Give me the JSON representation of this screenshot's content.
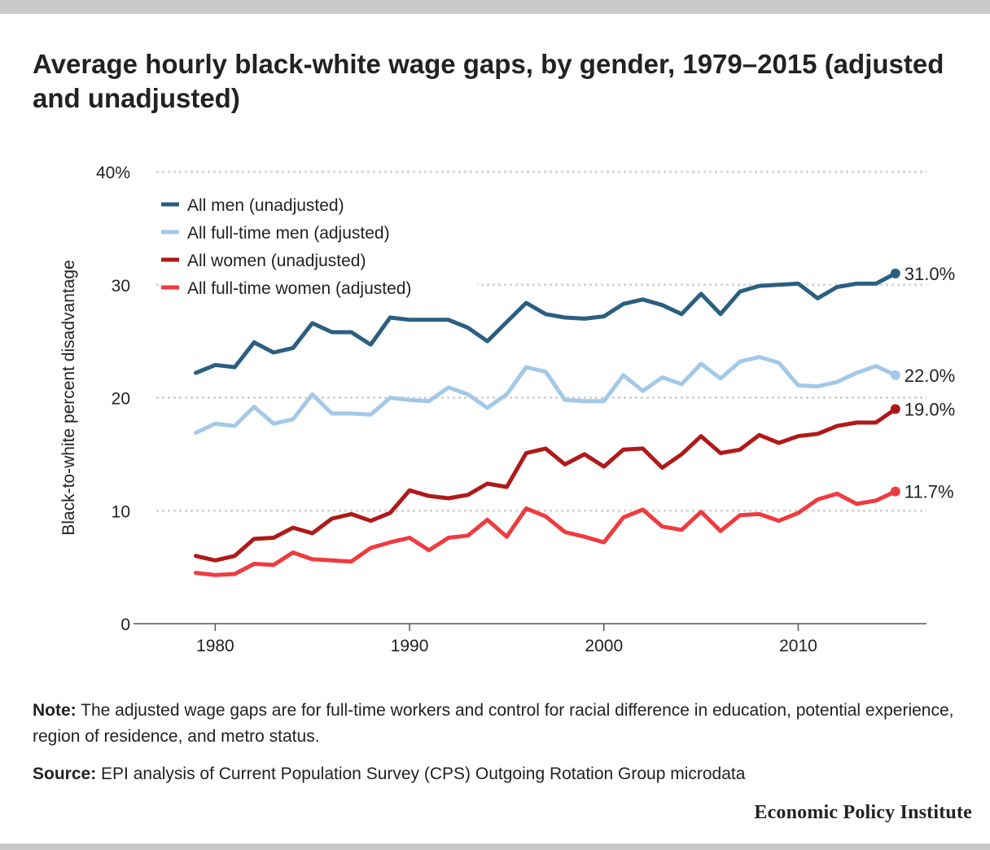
{
  "header": {
    "title": "Average hourly black-white wage gaps, by gender, 1979–2015 (adjusted and unadjusted)"
  },
  "footer": {
    "note_label": "Note:",
    "note_text": " The adjusted wage gaps are for full-time workers and control for racial difference in education, potential experience, region of residence, and metro status.",
    "source_label": "Source:",
    "source_text": " EPI analysis of Current Population Survey (CPS) Outgoing Rotation Group microdata",
    "brand": "Economic Policy Institute"
  },
  "chart_data": {
    "type": "line",
    "title": "Average hourly black-white wage gaps, by gender, 1979–2015 (adjusted and unadjusted)",
    "xlabel": "",
    "ylabel": "Black-to-white percent disadvantage",
    "xlim": [
      1976.8,
      2016.6
    ],
    "ylim": [
      0,
      40
    ],
    "x_ticks": [
      1980,
      1990,
      2000,
      2010
    ],
    "x_tick_labels": [
      "1980",
      "1990",
      "2000",
      "2010"
    ],
    "y_ticks": [
      0,
      10,
      20,
      30,
      40
    ],
    "y_tick_labels": [
      "0",
      "10",
      "20",
      "30",
      "40%"
    ],
    "grid": "horizontal dotted",
    "legend_position": "top-left",
    "x": [
      1979,
      1980,
      1981,
      1982,
      1983,
      1984,
      1985,
      1986,
      1987,
      1988,
      1989,
      1990,
      1991,
      1992,
      1993,
      1994,
      1995,
      1996,
      1997,
      1998,
      1999,
      2000,
      2001,
      2002,
      2003,
      2004,
      2005,
      2006,
      2007,
      2008,
      2009,
      2010,
      2011,
      2012,
      2013,
      2014,
      2015
    ],
    "series": [
      {
        "name": "All men (unadjusted)",
        "color": "#2b5f82",
        "end_label": "31.0%",
        "values": [
          22.2,
          22.9,
          22.7,
          24.9,
          24.0,
          24.4,
          26.6,
          25.8,
          25.8,
          24.7,
          27.1,
          26.9,
          26.9,
          26.9,
          26.2,
          25.0,
          26.7,
          28.4,
          27.4,
          27.1,
          27.0,
          27.2,
          28.3,
          28.7,
          28.2,
          27.4,
          29.2,
          27.4,
          29.4,
          29.9,
          30.0,
          30.1,
          28.8,
          29.8,
          30.1,
          30.1,
          31.0
        ]
      },
      {
        "name": "All full-time men (adjusted)",
        "color": "#a3c8e8",
        "end_label": "22.0%",
        "values": [
          16.9,
          17.7,
          17.5,
          19.2,
          17.7,
          18.1,
          20.3,
          18.6,
          18.6,
          18.5,
          20.0,
          19.8,
          19.7,
          20.9,
          20.3,
          19.1,
          20.3,
          22.7,
          22.3,
          19.8,
          19.7,
          19.7,
          22.0,
          20.6,
          21.8,
          21.2,
          23.0,
          21.7,
          23.2,
          23.6,
          23.1,
          21.1,
          21.0,
          21.4,
          22.2,
          22.8,
          22.0
        ]
      },
      {
        "name": "All women (unadjusted)",
        "color": "#b01919",
        "end_label": "19.0%",
        "values": [
          6.0,
          5.6,
          6.0,
          7.5,
          7.6,
          8.5,
          8.0,
          9.3,
          9.7,
          9.1,
          9.8,
          11.8,
          11.3,
          11.1,
          11.4,
          12.4,
          12.1,
          15.1,
          15.5,
          14.1,
          15.0,
          13.9,
          15.4,
          15.5,
          13.8,
          15.0,
          16.6,
          15.1,
          15.4,
          16.7,
          16.0,
          16.6,
          16.8,
          17.5,
          17.8,
          17.8,
          19.0
        ]
      },
      {
        "name": "All full-time women (adjusted)",
        "color": "#ef3b3f",
        "end_label": "11.7%",
        "values": [
          4.5,
          4.3,
          4.4,
          5.3,
          5.2,
          6.3,
          5.7,
          5.6,
          5.5,
          6.7,
          7.2,
          7.6,
          6.5,
          7.6,
          7.8,
          9.2,
          7.7,
          10.2,
          9.5,
          8.1,
          7.7,
          7.2,
          9.4,
          10.1,
          8.6,
          8.3,
          9.9,
          8.2,
          9.6,
          9.7,
          9.1,
          9.8,
          11.0,
          11.5,
          10.6,
          10.9,
          11.7
        ]
      }
    ]
  }
}
